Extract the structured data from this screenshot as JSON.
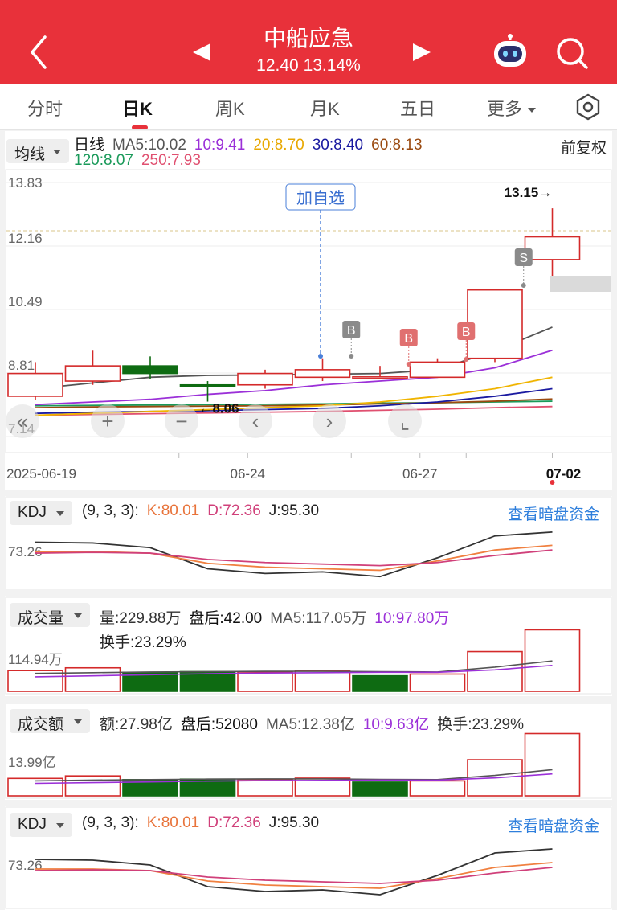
{
  "header": {
    "title": "中船应急",
    "price": "12.40",
    "change_pct": "13.14%",
    "icons": [
      "back-chevron-icon",
      "prev-arrow-icon",
      "next-arrow-icon",
      "robot-assistant-icon",
      "search-icon"
    ]
  },
  "tabs": [
    {
      "label": "分时"
    },
    {
      "label": "日K"
    },
    {
      "label": "周K"
    },
    {
      "label": "月K"
    },
    {
      "label": "五日"
    },
    {
      "label": "更多"
    }
  ],
  "kline": {
    "indicator_select": "均线",
    "legend": {
      "period": "日线",
      "ma5": "MA5:10.02",
      "ma10": "10:9.41",
      "ma20": "20:8.70",
      "ma30": "30:8.40",
      "ma60": "60:8.13",
      "ma120": "120:8.07",
      "ma250": "250:7.93"
    },
    "adjust": "前复权",
    "y_ticks": [
      "13.83",
      "12.16",
      "10.49",
      "8.81",
      "7.14"
    ],
    "x_ticks": [
      "2025-06-19",
      "06-24",
      "06-27",
      "07-02"
    ],
    "high_marker": "13.15→",
    "low_marker": "←8.06",
    "add_watchlist": "加自选",
    "trade_marks": [
      "B",
      "B",
      "B",
      "S"
    ],
    "colors": {
      "up": "#d42a2a",
      "down": "#0e6b12",
      "ma5": "#555555",
      "ma10": "#9b30d8",
      "ma20": "#f0b400",
      "ma30": "#1a1aa0",
      "ma60": "#9a4a10",
      "ma120": "#1a9a5a",
      "ma250": "#e05070"
    }
  },
  "chart_data": {
    "type": "candlestick",
    "y_range": [
      7.14,
      13.83
    ],
    "candles": [
      {
        "open": 8.2,
        "close": 8.8,
        "high": 9.1,
        "low": 8.1
      },
      {
        "open": 8.6,
        "close": 9.0,
        "high": 9.4,
        "low": 8.5
      },
      {
        "open": 9.0,
        "close": 8.8,
        "high": 9.25,
        "low": 8.65
      },
      {
        "open": 8.5,
        "close": 8.46,
        "high": 8.6,
        "low": 8.06
      },
      {
        "open": 8.5,
        "close": 8.8,
        "high": 8.9,
        "low": 8.4
      },
      {
        "open": 8.7,
        "close": 8.9,
        "high": 9.2,
        "low": 8.6
      },
      {
        "open": 8.71,
        "close": 8.71,
        "high": 9.0,
        "low": 8.7
      },
      {
        "open": 8.7,
        "close": 9.1,
        "high": 9.2,
        "low": 8.7
      },
      {
        "open": 9.2,
        "close": 11.0,
        "high": 11.0,
        "low": 9.1
      },
      {
        "open": 11.8,
        "close": 12.4,
        "high": 13.15,
        "low": 11.3
      }
    ],
    "ma5": [
      8.4,
      8.55,
      8.7,
      8.75,
      8.76,
      8.78,
      8.8,
      8.9,
      9.4,
      10.02
    ],
    "ma10": [
      7.98,
      8.05,
      8.12,
      8.25,
      8.35,
      8.5,
      8.6,
      8.7,
      8.95,
      9.41
    ],
    "ma20": [
      7.7,
      7.75,
      7.8,
      7.85,
      7.9,
      7.95,
      8.05,
      8.2,
      8.4,
      8.7
    ],
    "ma30": [
      7.75,
      7.78,
      7.8,
      7.82,
      7.85,
      7.88,
      7.95,
      8.05,
      8.2,
      8.4
    ],
    "ma60": [
      7.9,
      7.92,
      7.93,
      7.94,
      7.95,
      7.97,
      8.0,
      8.03,
      8.07,
      8.13
    ],
    "ma120": [
      7.95,
      7.96,
      7.97,
      7.98,
      7.99,
      8.0,
      8.02,
      8.03,
      8.05,
      8.07
    ],
    "ma250": [
      7.7,
      7.72,
      7.74,
      7.76,
      7.78,
      7.8,
      7.83,
      7.86,
      7.9,
      7.93
    ]
  },
  "kdj1": {
    "select": "KDJ",
    "params": "(9, 3, 3):",
    "k": "K:80.01",
    "d": "D:72.36",
    "j": "J:95.30",
    "tick": "73.26",
    "link": "查看暗盘资金",
    "k_series": [
      70,
      70,
      68,
      55,
      50,
      48,
      46,
      58,
      72,
      78
    ],
    "d_series": [
      68,
      69,
      68,
      60,
      56,
      54,
      52,
      56,
      65,
      72
    ],
    "j_series": [
      82,
      81,
      75,
      48,
      42,
      44,
      38,
      62,
      90,
      95
    ]
  },
  "volume": {
    "select": "成交量",
    "vol": "量:229.88万",
    "after": "盘后:42.00",
    "ma5": "MA5:117.05万",
    "ma10": "10:97.80万",
    "turnover": "换手:23.29%",
    "tick": "114.94万",
    "bars": [
      {
        "v": 60,
        "up": true
      },
      {
        "v": 68,
        "up": true
      },
      {
        "v": 55,
        "up": false
      },
      {
        "v": 57,
        "up": false
      },
      {
        "v": 56,
        "up": true
      },
      {
        "v": 60,
        "up": true
      },
      {
        "v": 45,
        "up": false
      },
      {
        "v": 50,
        "up": true
      },
      {
        "v": 115,
        "up": true
      },
      {
        "v": 178,
        "up": true
      }
    ],
    "ma5_series": [
      52,
      54,
      56,
      57,
      58,
      58,
      57,
      56,
      70,
      88
    ],
    "ma10_series": [
      42,
      45,
      48,
      51,
      53,
      54,
      55,
      55,
      62,
      75
    ]
  },
  "amount": {
    "select": "成交额",
    "amt": "额:27.98亿",
    "after": "盘后:52080",
    "ma5": "MA5:12.38亿",
    "ma10": "10:9.63亿",
    "turnover": "换手:23.29%",
    "tick": "13.99亿",
    "bars": [
      {
        "v": 7,
        "up": true
      },
      {
        "v": 8,
        "up": true
      },
      {
        "v": 6.5,
        "up": false
      },
      {
        "v": 6.7,
        "up": false
      },
      {
        "v": 6.6,
        "up": true
      },
      {
        "v": 7.1,
        "up": true
      },
      {
        "v": 5.5,
        "up": false
      },
      {
        "v": 6,
        "up": true
      },
      {
        "v": 14.5,
        "up": true
      },
      {
        "v": 25,
        "up": true
      }
    ],
    "ma5_series": [
      6.0,
      6.3,
      6.5,
      6.7,
      6.8,
      6.8,
      6.6,
      6.5,
      8.2,
      10.5
    ],
    "ma10_series": [
      5.0,
      5.3,
      5.6,
      5.9,
      6.1,
      6.2,
      6.3,
      6.3,
      7.2,
      8.8
    ]
  },
  "kdj2": {
    "select": "KDJ",
    "params": "(9, 3, 3):",
    "k": "K:80.01",
    "d": "D:72.36",
    "j": "J:95.30",
    "tick": "73.26",
    "link": "查看暗盘资金"
  }
}
